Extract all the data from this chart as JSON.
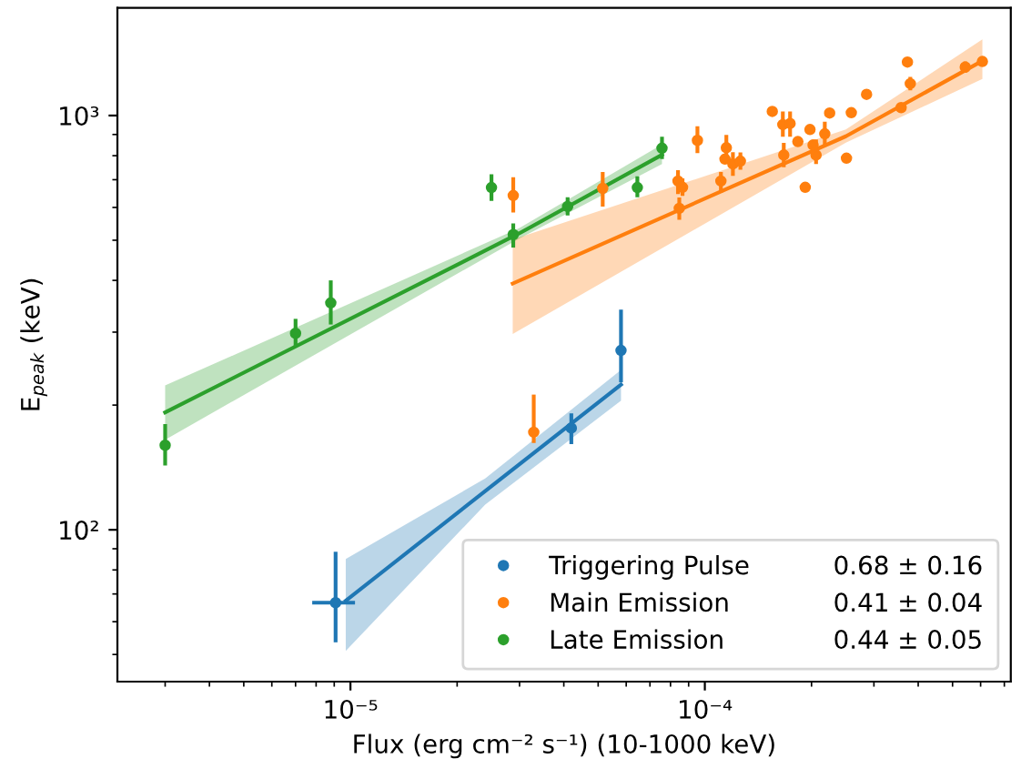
{
  "chart_data": {
    "type": "scatter",
    "xlabel": "Flux (erg cm⁻² s⁻¹) (10-1000 keV)",
    "ylabel": "E$_{peak}$ (keV)",
    "log": "xy",
    "xlim": [
      2.2e-06,
      0.00073
    ],
    "ylim": [
      43,
      1820
    ],
    "xticks": [
      {
        "value": 1e-05,
        "label": "10⁻⁵"
      },
      {
        "value": 0.0001,
        "label": "10⁻⁴"
      }
    ],
    "yticks": [
      {
        "value": 100,
        "label": "10²"
      },
      {
        "value": 1000,
        "label": "10³"
      }
    ],
    "grid": false,
    "legend": "lower right",
    "marker": "circle",
    "annotations": [
      "0.68 ± 0.16",
      "0.41 ± 0.04",
      "0.44 ± 0.05"
    ],
    "series": [
      {
        "type": "line",
        "marker": "none",
        "color": "#1f77b4",
        "x": [
          9.7e-06,
          2.4e-05,
          5.8e-05
        ],
        "values": [
          67.4,
          124,
          224
        ],
        "lower": [
          51,
          115,
          205
        ],
        "upper": [
          85,
          133,
          243
        ]
      },
      {
        "type": "line",
        "marker": "none",
        "color": "#ff7f0e",
        "x": [
          2.87e-05,
          0.00025,
          0.000607
        ],
        "values": [
          393,
          891,
          1355
        ],
        "lower": [
          297,
          860,
          1225
        ],
        "upper": [
          502,
          925,
          1527
        ]
      },
      {
        "type": "line",
        "marker": "none",
        "color": "#2ca02c",
        "x": [
          3e-06,
          3e-05,
          7.57e-05
        ],
        "values": [
          192,
          520,
          804
        ],
        "lower": [
          165,
          505,
          764
        ],
        "upper": [
          223,
          535,
          851
        ]
      },
      {
        "name": "Triggering Pulse",
        "color": "#1f77b4",
        "x": [
          9.08e-06,
          4.2e-05,
          5.8e-05
        ],
        "values": [
          66.7,
          176,
          271
        ],
        "errors": [
          [
            53.5,
            88.5
          ],
          [
            161,
            191
          ],
          [
            227,
            340
          ]
        ],
        "xerrors": [
          [
            7.8e-06,
            1.03e-05
          ],
          null,
          null
        ]
      },
      {
        "name": "Main Emission",
        "color": "#ff7f0e",
        "x": [
          2.88e-05,
          3.29e-05,
          5.15e-05,
          6.56e-05,
          8.4e-05,
          8.65e-05,
          8.47e-05,
          9.53e-05,
          0.000111,
          0.000115,
          0.000114,
          0.00012,
          0.000126,
          0.000155,
          0.000166,
          0.000174,
          0.000167,
          0.000183,
          0.000192,
          0.000198,
          0.000202,
          0.000206,
          0.000218,
          0.000225,
          0.000251,
          0.000259,
          0.000286,
          0.000358,
          0.000373,
          0.00038,
          0.000543,
          0.000607
        ],
        "values": [
          641,
          172,
          667,
          null,
          695,
          671,
          597,
          871,
          695,
          836,
          785,
          764,
          776,
          1023,
          951,
          957,
          803,
          865,
          671,
          925,
          849,
          803,
          903,
          1014,
          789,
          1016,
          1125,
          1045,
          1346,
          1194,
          1309,
          1350
        ],
        "errors": [
          [
            583,
            710
          ],
          [
            162,
            212
          ],
          [
            603,
            731
          ],
          null,
          [
            646,
            738
          ],
          [
            640,
            705
          ],
          [
            560,
            634
          ],
          [
            811,
            942
          ],
          [
            650,
            731
          ],
          [
            785,
            898
          ],
          null,
          [
            715,
            816
          ],
          [
            740,
            815
          ],
          null,
          [
            889,
            1023
          ],
          [
            889,
            1023
          ],
          [
            750,
            859
          ],
          null,
          null,
          null,
          null,
          [
            764,
            875
          ],
          [
            845,
            966
          ],
          null,
          null,
          null,
          null,
          null,
          null,
          [
            1150,
            1240
          ],
          [
            1270,
            1350
          ],
          null
        ]
      },
      {
        "name": "Late Emission",
        "color": "#2ca02c",
        "x": [
          3e-06,
          7e-06,
          8.8e-06,
          2.5e-05,
          2.88e-05,
          4.1e-05,
          6.45e-05,
          7.57e-05
        ],
        "values": [
          160,
          298,
          353,
          670,
          516,
          603,
          670,
          834
        ],
        "errors": [
          [
            143,
            180
          ],
          [
            276,
            323
          ],
          [
            313,
            400
          ],
          [
            622,
            721
          ],
          [
            480,
            549
          ],
          [
            574,
            635
          ],
          [
            635,
            713
          ],
          [
            785,
            889
          ]
        ]
      }
    ]
  }
}
